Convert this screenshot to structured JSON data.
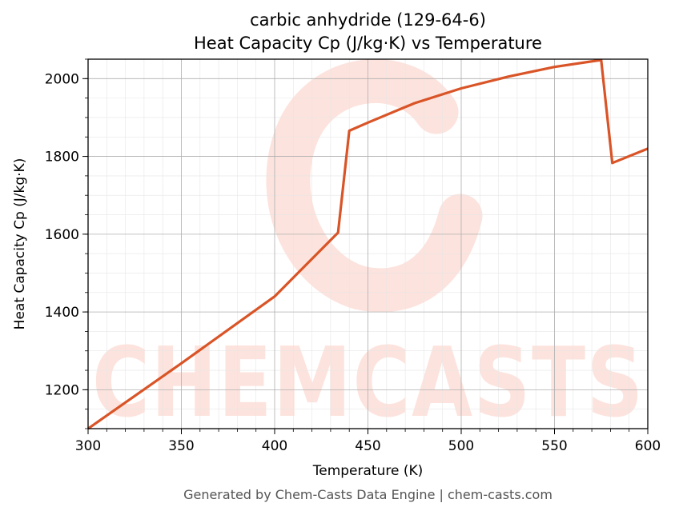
{
  "chart_data": {
    "type": "line",
    "title_line1": "carbic anhydride (129-64-6)",
    "title_line2": "Heat Capacity Cp (J/kg·K) vs Temperature",
    "xlabel": "Temperature (K)",
    "ylabel": "Heat Capacity Cp (J/kg·K)",
    "xlim": [
      300,
      600
    ],
    "ylim": [
      1100,
      2050
    ],
    "xticks": [
      300,
      350,
      400,
      450,
      500,
      550,
      600
    ],
    "yticks": [
      1200,
      1400,
      1600,
      1800,
      2000
    ],
    "grid": true,
    "line_color": "#d95427",
    "series": [
      {
        "points": [
          [
            300,
            1100
          ],
          [
            350,
            1268
          ],
          [
            400,
            1440
          ],
          [
            434,
            1604
          ],
          [
            437,
            1735
          ],
          [
            440,
            1866
          ],
          [
            450,
            1887
          ],
          [
            475,
            1937
          ],
          [
            500,
            1975
          ],
          [
            525,
            2005
          ],
          [
            550,
            2030
          ],
          [
            575,
            2048
          ],
          [
            578,
            1916
          ],
          [
            581,
            1783
          ],
          [
            600,
            1820
          ]
        ]
      }
    ]
  },
  "watermark": {
    "text": "CHEMCASTS",
    "color": "#fde3dd"
  },
  "footer": "Generated by Chem-Casts Data Engine | chem-casts.com"
}
